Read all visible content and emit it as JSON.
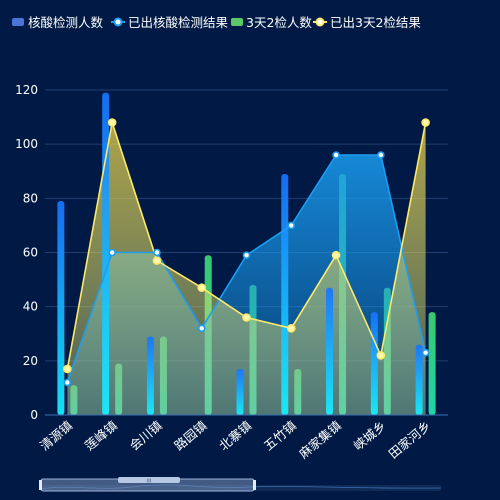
{
  "chart_data": {
    "type": "bar",
    "title": "",
    "xlabel": "",
    "ylabel": "",
    "ylim": [
      0,
      130
    ],
    "yticks": [
      0,
      20,
      40,
      60,
      80,
      100,
      120
    ],
    "grid": true,
    "legend_position": "top-left",
    "categories": [
      "清源镇",
      "莲峰镇",
      "会川镇",
      "路园镇",
      "北寨镇",
      "五竹镇",
      "麻家集镇",
      "峡城乡",
      "田家河乡"
    ],
    "series": [
      {
        "name": "核酸检测人数",
        "type": "bar",
        "color": "#1e8cff",
        "values": [
          79,
          119,
          29,
          0,
          17,
          89,
          47,
          38,
          26
        ]
      },
      {
        "name": "已出核酸检测结果",
        "type": "line",
        "color": "#1e9df0",
        "values": [
          12,
          60,
          60,
          32,
          59,
          70,
          96,
          96,
          23
        ]
      },
      {
        "name": "3天2检人数",
        "type": "bar",
        "color": "#3ddc84",
        "values": [
          11,
          19,
          29,
          59,
          48,
          17,
          89,
          47,
          38
        ]
      },
      {
        "name": "已出3天2检结果",
        "type": "line",
        "color": "#ffe96b",
        "values": [
          17,
          108,
          57,
          47,
          36,
          32,
          59,
          22,
          108
        ]
      }
    ]
  },
  "colors": {
    "background": "#001a45",
    "grid": "#1f3d6e",
    "axis": "#3d6fb3"
  },
  "data_zoom": {
    "handle_label": "III",
    "start_fraction": 0,
    "end_fraction": 0.53
  }
}
